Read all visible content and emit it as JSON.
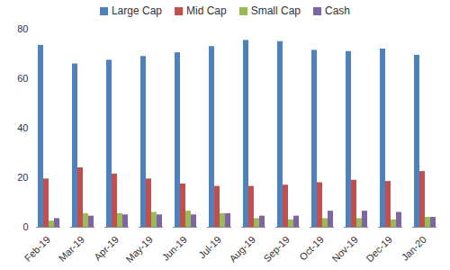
{
  "chart_data": {
    "type": "bar",
    "categories": [
      "Feb-19",
      "Mar-19",
      "Apr-19",
      "May-19",
      "Jun-19",
      "Jul-19",
      "Aug-19",
      "Sep-19",
      "Oct-19",
      "Nov-19",
      "Dec-19",
      "Jan-20"
    ],
    "series": [
      {
        "name": "Large Cap",
        "color": "#4f81bd",
        "values": [
          73.5,
          66,
          67.5,
          69,
          70.5,
          73,
          75.5,
          75,
          71.5,
          71,
          72,
          69.5
        ]
      },
      {
        "name": "Mid Cap",
        "color": "#c0504d",
        "values": [
          19.5,
          24,
          21.5,
          19.5,
          17.5,
          16.5,
          16.5,
          17,
          18,
          19,
          18.5,
          22.5
        ]
      },
      {
        "name": "Small Cap",
        "color": "#9bbb59",
        "values": [
          2.5,
          5.5,
          5.5,
          6,
          6.5,
          5.5,
          3.5,
          3,
          3.5,
          3.5,
          3,
          4
        ]
      },
      {
        "name": "Cash",
        "color": "#8064a2",
        "values": [
          3.5,
          4.5,
          5,
          5,
          5,
          5.5,
          4.5,
          4.5,
          6.5,
          6.5,
          6,
          4
        ]
      }
    ],
    "ylim": [
      0,
      80
    ],
    "yticks": [
      0,
      20,
      40,
      60,
      80
    ],
    "grid": false,
    "legend": "top"
  }
}
